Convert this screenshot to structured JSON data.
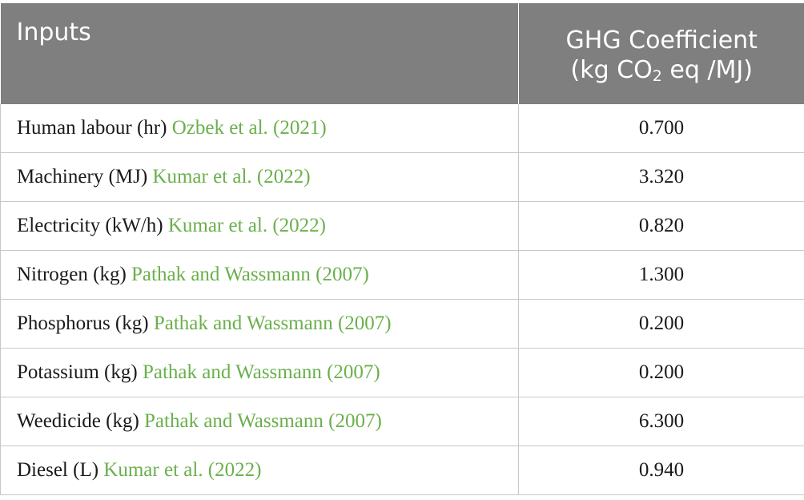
{
  "table": {
    "header": {
      "inputs": "Inputs",
      "coef_line1": "GHG Coefficient",
      "coef_line2_a": "(kg CO",
      "coef_sub": "2",
      "coef_line2_b": " eq /MJ)"
    },
    "rows": [
      {
        "label": "Human labour (hr)",
        "ref": "Ozbek et al. (2021)",
        "value": "0.700"
      },
      {
        "label": "Machinery (MJ)",
        "ref": "Kumar et al. (2022)",
        "value": "3.320"
      },
      {
        "label": "Electricity (kW/h)",
        "ref": "Kumar et al. (2022)",
        "value": "0.820"
      },
      {
        "label": "Nitrogen (kg)",
        "ref": "Pathak and Wassmann (2007)",
        "value": "1.300"
      },
      {
        "label": "Phosphorus (kg)",
        "ref": "Pathak and Wassmann (2007)",
        "value": "0.200"
      },
      {
        "label": "Potassium (kg)",
        "ref": "Pathak and Wassmann (2007)",
        "value": "0.200"
      },
      {
        "label": "Weedicide (kg)",
        "ref": "Pathak and Wassmann (2007)",
        "value": "6.300"
      },
      {
        "label": "Diesel (L)",
        "ref": "Kumar et al. (2022)",
        "value": "0.940"
      }
    ],
    "colors": {
      "header_bg": "#7f7f7f",
      "citation": "#6ab04c",
      "border": "#c8c8c8"
    }
  }
}
